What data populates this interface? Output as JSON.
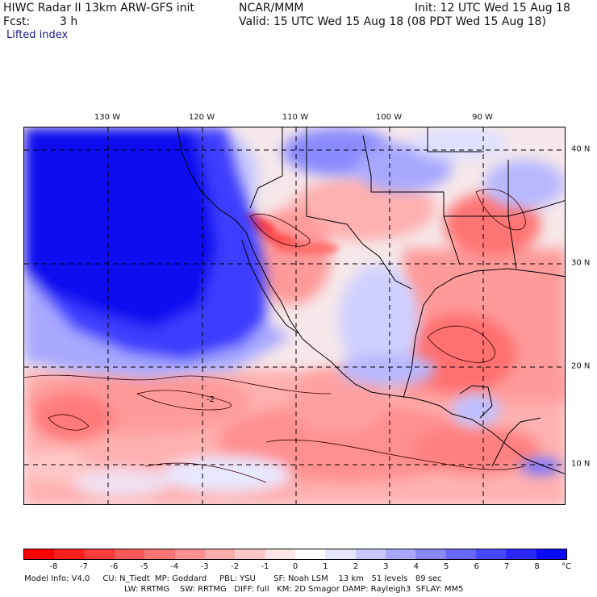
{
  "header": {
    "title": "HIWC Radar II 13km ARW-GFS init",
    "org": "NCAR/MMM",
    "init": "Init: 12 UTC Wed 15 Aug 18",
    "fcst_label": "Fcst:",
    "fcst_value": "3 h",
    "valid": "Valid: 15 UTC Wed 15 Aug 18 (08 PDT Wed 15 Aug 18)",
    "field": "Lifted index"
  },
  "map": {
    "lon_labels": [
      "130 W",
      "120 W",
      "110 W",
      "100 W",
      "90 W"
    ],
    "lat_labels": [
      "40 N",
      "30 N",
      "20 N",
      "10 N"
    ],
    "contour_label_example": "-2"
  },
  "colorbar": {
    "labels": [
      "-8",
      "-7",
      "-6",
      "-5",
      "-4",
      "-3",
      "-2",
      "-1",
      "0",
      "1",
      "2",
      "3",
      "4",
      "5",
      "6",
      "7",
      "8"
    ],
    "unit": "°C",
    "colors": [
      "#ff0000",
      "#ff2020",
      "#ff3c3c",
      "#ff5858",
      "#ff7474",
      "#ff9090",
      "#ffacac",
      "#ffc8c8",
      "#ffe6e6",
      "#ffffff",
      "#e6e6ff",
      "#c8c8ff",
      "#a8a8ff",
      "#8888ff",
      "#6868ff",
      "#4848ff",
      "#2828ff",
      "#0a0aff"
    ]
  },
  "footer": {
    "line1": "Model Info: V4.0     CU: N_Tiedt  MP: Goddard     PBL: YSU       SF: Noah LSM    13 km   51 levels   89 sec",
    "line2": "LW: RRTMG    SW: RRTMG   DIFF: full   KM: 2D Smagor DAMP: Rayleigh3  SFLAY: MM5"
  }
}
